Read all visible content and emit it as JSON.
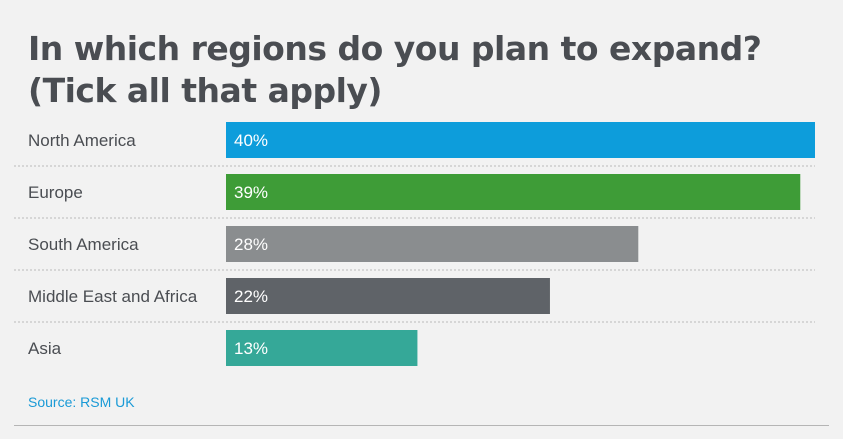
{
  "chart_data": {
    "type": "bar",
    "orientation": "horizontal",
    "title": "In which regions do you plan to expand? (Tick all that apply)",
    "categories": [
      "North America",
      "Europe",
      "South America",
      "Middle East and Africa",
      "Asia"
    ],
    "values": [
      40,
      39,
      28,
      22,
      13
    ],
    "value_labels": [
      "40%",
      "39%",
      "28%",
      "22%",
      "13%"
    ],
    "colors": [
      "#0d9ddb",
      "#3e9c37",
      "#8a8d8f",
      "#5f6368",
      "#35a898"
    ],
    "xlim": [
      0,
      40
    ],
    "grid": false,
    "legend": "none"
  },
  "source": "Source: RSM UK"
}
